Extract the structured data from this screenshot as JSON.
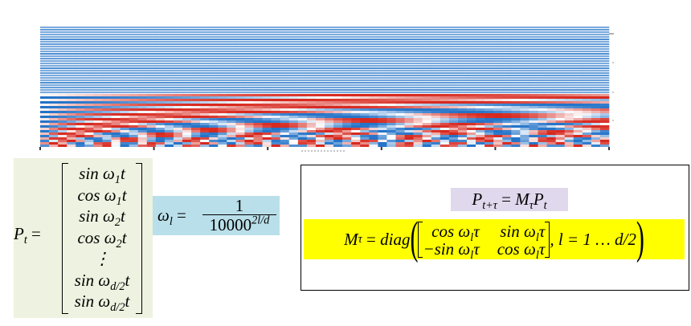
{
  "vector_panel": {
    "lhs": "P",
    "lhs_sub": "t",
    "equals": "=",
    "rows": [
      {
        "text": "sin ω",
        "sub": "1",
        "tail": "t"
      },
      {
        "text": "cos ω",
        "sub": "1",
        "tail": "t"
      },
      {
        "text": "sin ω",
        "sub": "2",
        "tail": "t"
      },
      {
        "text": "cos ω",
        "sub": "2",
        "tail": "t"
      },
      {
        "text": "⋮",
        "sub": "",
        "tail": ""
      },
      {
        "text": "sin ω",
        "sub": "d/2",
        "tail": "t"
      },
      {
        "text": "sin ω",
        "sub": "d/2",
        "tail": "t"
      }
    ]
  },
  "omega_panel": {
    "lhs": "ω",
    "lhs_sub": "l",
    "equals": "=",
    "numerator": "1",
    "base": "10000",
    "exponent": "2l/d"
  },
  "shift_panel": {
    "shift_formula": {
      "lhs": "P",
      "lhs_sub": "t+τ",
      "equals": "=",
      "m": "M",
      "m_sub": "τ",
      "p": "P",
      "p_sub": "t"
    },
    "rotation_formula": {
      "lhs": "M",
      "lhs_sub": "τ",
      "equals": "=",
      "fn": "diag",
      "matrix": [
        [
          {
            "text": "cos ω",
            "sub": "l",
            "tail": "τ"
          },
          {
            "text": "sin ω",
            "sub": "l",
            "tail": "τ"
          }
        ],
        [
          {
            "text": "−sin ω",
            "sub": "l",
            "tail": "τ"
          },
          {
            "text": "cos ω",
            "sub": "l",
            "tail": "τ"
          }
        ]
      ],
      "range": ", l = 1 … d/2"
    }
  }
}
